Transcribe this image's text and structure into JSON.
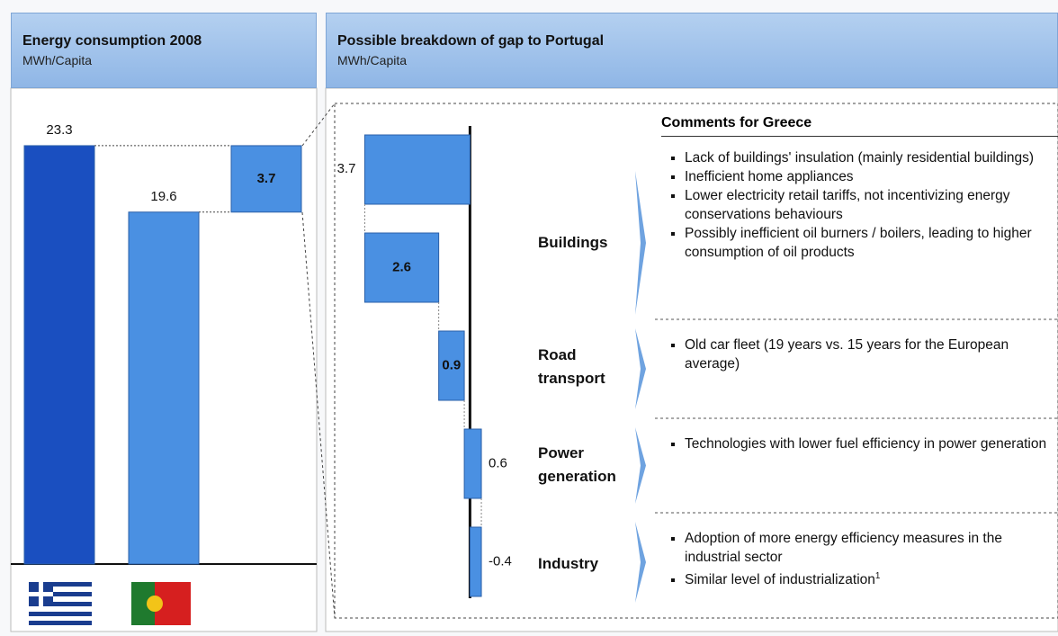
{
  "chart_data": [
    {
      "type": "bar",
      "title": "Energy consumption 2008",
      "subtitle": "MWh/Capita",
      "categories": [
        null,
        null,
        null
      ],
      "values": [
        23.3,
        19.6,
        3.7
      ],
      "colors": [
        "#1a4fc0",
        "#4a90e2",
        "#4a90e2"
      ],
      "ylim": [
        0,
        25
      ]
    },
    {
      "type": "waterfall",
      "title": "Possible breakdown of gap to Portugal",
      "subtitle": "MWh/Capita",
      "categories": [
        null,
        "Buildings",
        "Road transport",
        "Power generation",
        "Industry"
      ],
      "values": [
        3.7,
        2.6,
        0.9,
        0.6,
        -0.4
      ],
      "color": "#4a90e2",
      "xlim": [
        4,
        -1
      ]
    }
  ],
  "comments": {
    "title": "Comments for Greece",
    "groups": [
      {
        "bullets": [
          "Lack of buildings' insulation (mainly residential buildings)",
          "Inefficient home appliances",
          "Lower electricity retail tariffs, not incentivizing energy conservations behaviours",
          "Possibly inefficient oil burners / boilers, leading to higher consumption of oil products"
        ]
      },
      {
        "bullets": [
          "Old car fleet (19 years vs. 15 years for the European average)"
        ]
      },
      {
        "bullets": [
          "Technologies with lower fuel efficiency in power generation"
        ]
      },
      {
        "bullets": [
          "Adoption of more energy efficiency measures in the industrial sector",
          "Similar level of industrialization"
        ],
        "footnote": "1"
      }
    ]
  }
}
